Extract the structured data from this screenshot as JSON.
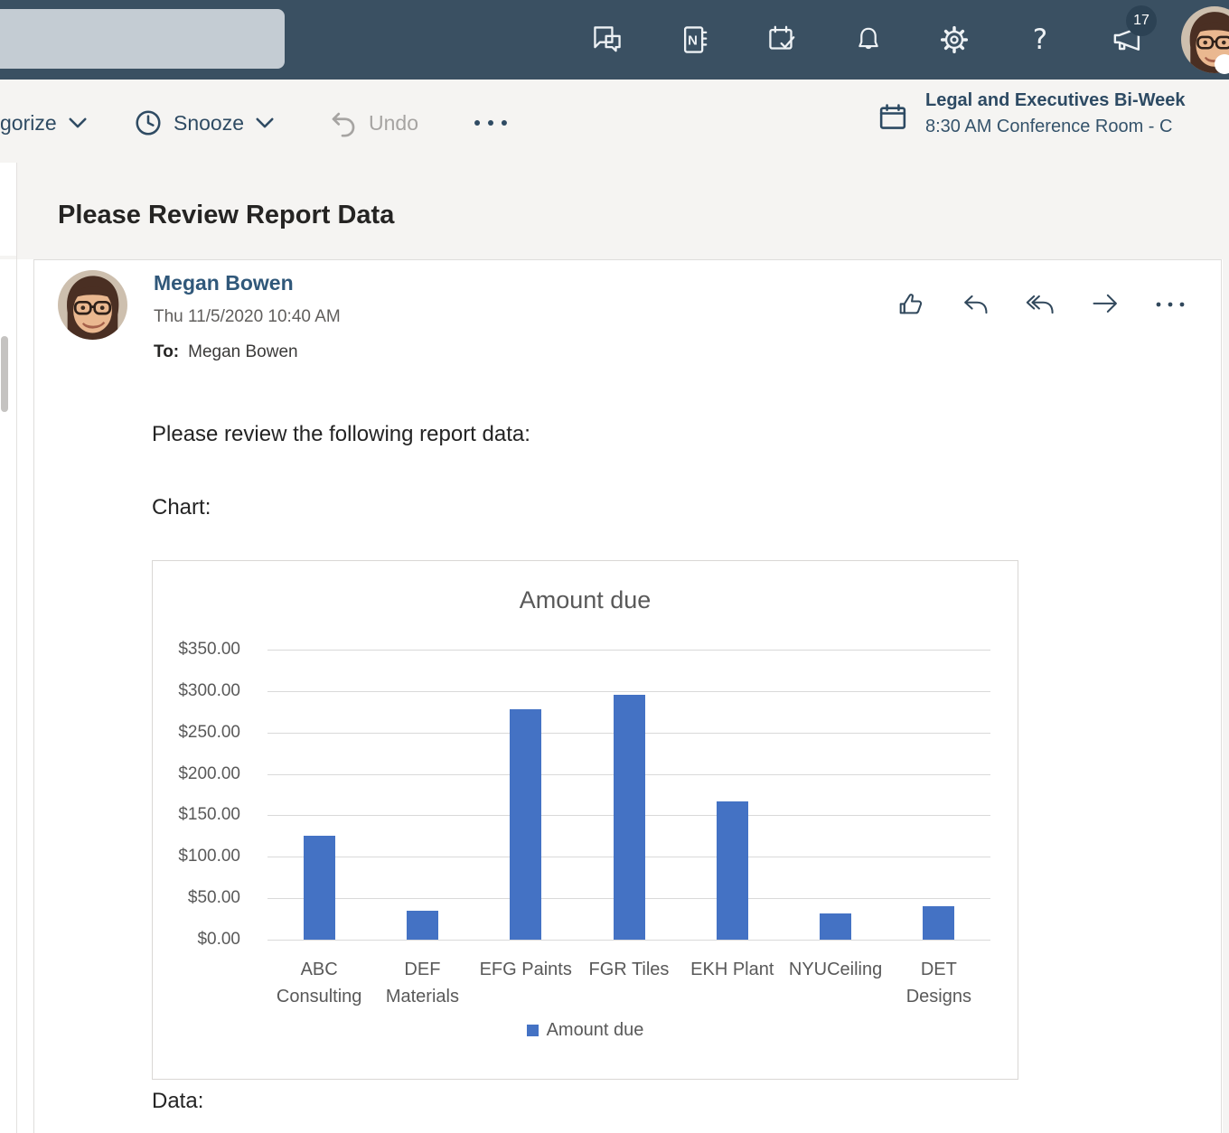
{
  "topbar": {
    "whats_new_badge": "17",
    "icons": [
      "chat-icon",
      "onenote-icon",
      "my-day-icon",
      "notifications-icon",
      "settings-icon",
      "help-icon",
      "whats-new-icon",
      "avatar"
    ]
  },
  "command_bar": {
    "categorize_label": "gorize",
    "snooze_label": "Snooze",
    "undo_label": "Undo",
    "event": {
      "title": "Legal and Executives Bi-Week",
      "details": "8:30 AM Conference Room - C"
    }
  },
  "message": {
    "subject": "Please Review Report Data",
    "sender_name": "Megan Bowen",
    "sent_datetime": "Thu 11/5/2020 10:40 AM",
    "to_label": "To:",
    "to_recipients": "Megan Bowen",
    "body_intro": "Please review the following report data:",
    "chart_caption": "Chart:",
    "data_caption": "Data:"
  },
  "chart_data": {
    "type": "bar",
    "title": "Amount due",
    "series_name": "Amount due",
    "categories": [
      "ABC Consulting",
      "DEF Materials",
      "EFG Paints",
      "FGR Tiles",
      "EKH Plant",
      "NYUCeiling",
      "DET Designs"
    ],
    "categories_lines": [
      [
        "ABC",
        "Consulting"
      ],
      [
        "DEF",
        "Materials"
      ],
      [
        "EFG Paints"
      ],
      [
        "FGR Tiles"
      ],
      [
        "EKH Plant"
      ],
      [
        "NYUCeiling"
      ],
      [
        "DET",
        "Designs"
      ]
    ],
    "values": [
      125,
      35,
      278,
      295,
      167,
      32,
      40
    ],
    "ylim": [
      0,
      350
    ],
    "y_tick_step": 50,
    "y_tick_labels": [
      "$350.00",
      "$300.00",
      "$250.00",
      "$200.00",
      "$150.00",
      "$100.00",
      "$50.00",
      "$0.00"
    ],
    "bar_color": "#4472c4",
    "grid": true,
    "legend_position": "bottom"
  }
}
